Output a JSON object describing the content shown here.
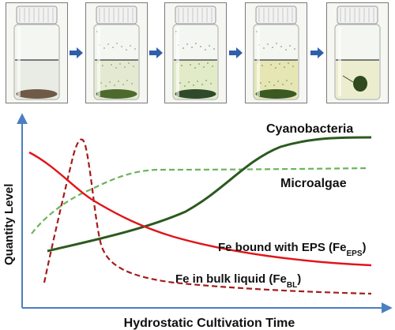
{
  "photos": [
    {
      "stage": 1,
      "liquid": "#e9ece4",
      "bottom": "#6e5a47",
      "particles": false,
      "ball": false
    },
    {
      "stage": 2,
      "liquid": "#e4ead2",
      "bottom": "#4d6a2e",
      "particles": true,
      "ball": false
    },
    {
      "stage": 3,
      "liquid": "#e2ebc8",
      "bottom": "#2f4a2a",
      "particles": true,
      "ball": false
    },
    {
      "stage": 4,
      "liquid": "#e6e6b4",
      "bottom": "#3a5a22",
      "particles": true,
      "ball": false
    },
    {
      "stage": 5,
      "liquid": "#ecedce",
      "bottom": "#2f4a1e",
      "particles": false,
      "ball": true
    }
  ],
  "arrow_color": "#2e5fa8",
  "diagram": {
    "y_axis_label": "Quantity Level",
    "x_axis_label": "Hydrostatic Cultivation Time",
    "axis_color": "#4a7fc0",
    "curves": {
      "cyanobacteria": {
        "label": "Cyanobacteria",
        "color": "#2b5a1e",
        "style": "solid"
      },
      "microalgae": {
        "label": "Microalgae",
        "color": "#6db35a",
        "style": "dashed"
      },
      "fe_eps": {
        "label_main": "Fe bound with EPS (Fe",
        "label_sub": "EPS",
        "label_end": ")",
        "color": "#e0151a",
        "style": "solid"
      },
      "fe_bl": {
        "label_main": "Fe in bulk liquid (Fe",
        "label_sub": "BL",
        "label_end": ")",
        "color": "#a61b1b",
        "style": "dashed"
      }
    }
  }
}
